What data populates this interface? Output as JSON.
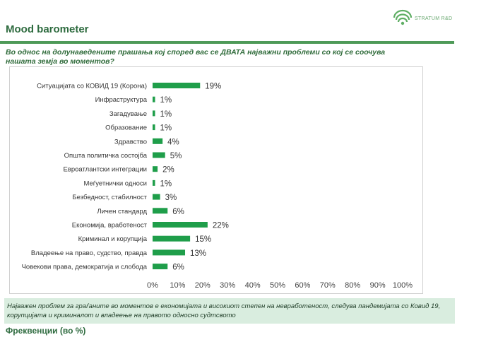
{
  "header": {
    "title": "Mood barometer",
    "logo_text": "STRATUM R&D"
  },
  "question": "Во однос на долунаведените прашања кој според вас се ДВАТА најважни проблеми со кој се соочува нашата земја во моментов?",
  "colors": {
    "bar": "#1f9e4a",
    "brand_green": "#4e9a58",
    "callout_bg": "#d9eddf"
  },
  "chart_data": {
    "type": "bar",
    "orientation": "horizontal",
    "categories": [
      "Ситуацијата со КОВИД 19 (Корона)",
      "Инфраструктура",
      "Загадување",
      "Образование",
      "Здравство",
      "Општа политичка состојба",
      "Евроатлантски интеграции",
      "Меѓуетнички односи",
      "Безбедност, стабилност",
      "Личен стандард",
      "Економија, вработеност",
      "Криминал и корупција",
      "Владеење на право, судство, правда",
      "Човекови права, демократија и слобода"
    ],
    "values": [
      19,
      1,
      1,
      1,
      4,
      5,
      2,
      1,
      3,
      6,
      22,
      15,
      13,
      6
    ],
    "value_labels": [
      "19%",
      "1%",
      "1%",
      "1%",
      "4%",
      "5%",
      "2%",
      "1%",
      "3%",
      "6%",
      "22%",
      "15%",
      "13%",
      "6%"
    ],
    "xlim": [
      0,
      100
    ],
    "x_ticks": [
      "0%",
      "10%",
      "20%",
      "30%",
      "40%",
      "50%",
      "60%",
      "70%",
      "80%",
      "90%",
      "100%"
    ],
    "grid": false,
    "legend": "none"
  },
  "callout": "Најважен проблем за граѓаните во моментов е економијата и високиот степен на невработеност, следува пандемијата со Ковид 19, корупцијата и криминалот и владеење на правото односно судтсвото",
  "footer": {
    "label": "Фреквенции (во %)"
  }
}
